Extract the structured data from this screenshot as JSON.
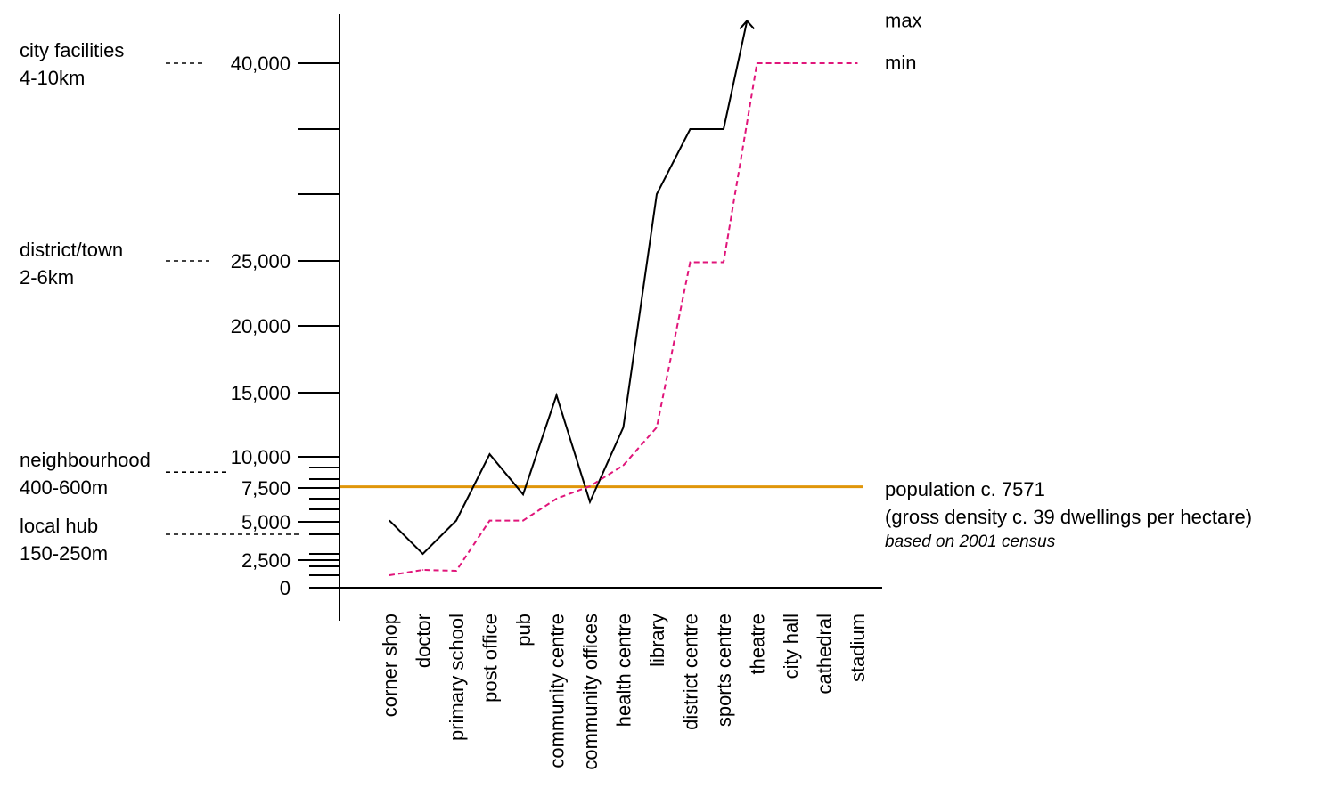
{
  "chart_data": {
    "type": "line",
    "categories": [
      "corner shop",
      "doctor",
      "primary school",
      "post office",
      "pub",
      "community centre",
      "community offices",
      "health centre",
      "library",
      "district centre",
      "sports centre",
      "theatre",
      "city hall",
      "cathedral",
      "stadium"
    ],
    "series": [
      {
        "name": "max",
        "values": [
          5100,
          3000,
          5100,
          10200,
          7200,
          14800,
          6700,
          12300,
          30000,
          35000,
          35000,
          null,
          null,
          null,
          null
        ],
        "color": "#000000",
        "dash": false,
        "continues_upward_beyond": 43500
      },
      {
        "name": "min",
        "values": [
          1000,
          1600,
          1500,
          5100,
          5100,
          7000,
          7600,
          9200,
          12300,
          24900,
          24900,
          40000,
          40000,
          40000,
          40000
        ],
        "color": "#e0157a",
        "dash": true
      }
    ],
    "y_tick_labels": [
      {
        "value": 0,
        "label": "0"
      },
      {
        "value": 2500,
        "label": "2,500"
      },
      {
        "value": 5000,
        "label": "5,000"
      },
      {
        "value": 7500,
        "label": "7,500"
      },
      {
        "value": 10000,
        "label": "10,000"
      },
      {
        "value": 15000,
        "label": "15,000"
      },
      {
        "value": 20000,
        "label": "20,000"
      },
      {
        "value": 25000,
        "label": "25,000"
      },
      {
        "value": 40000,
        "label": "40,000"
      }
    ],
    "y_ticks_unlabeled": [
      1000,
      2000,
      3000,
      4000,
      6000,
      7000,
      8000,
      9000,
      30000,
      35000
    ],
    "ylim": [
      0,
      40000
    ],
    "reference_line": {
      "value": 7571,
      "color": "#e0960a",
      "label_lines": [
        "population c. 7571",
        "(gross density c. 39 dwellings per hectare)"
      ],
      "note": "based on 2001 census"
    },
    "catchment_bands": [
      {
        "name_lines": [
          "city facilities",
          "4-10km"
        ],
        "value": 40000
      },
      {
        "name_lines": [
          "district/town",
          "2-6km"
        ],
        "value": 25000
      },
      {
        "name_lines": [
          "neighbourhood",
          "400-600m"
        ],
        "value": 8600
      },
      {
        "name_lines": [
          "local hub",
          "150-250m"
        ],
        "value": 4000
      }
    ],
    "legend": [
      {
        "label": "max",
        "value": 43500
      },
      {
        "label": "min",
        "value": 40000
      }
    ],
    "grid": false
  }
}
